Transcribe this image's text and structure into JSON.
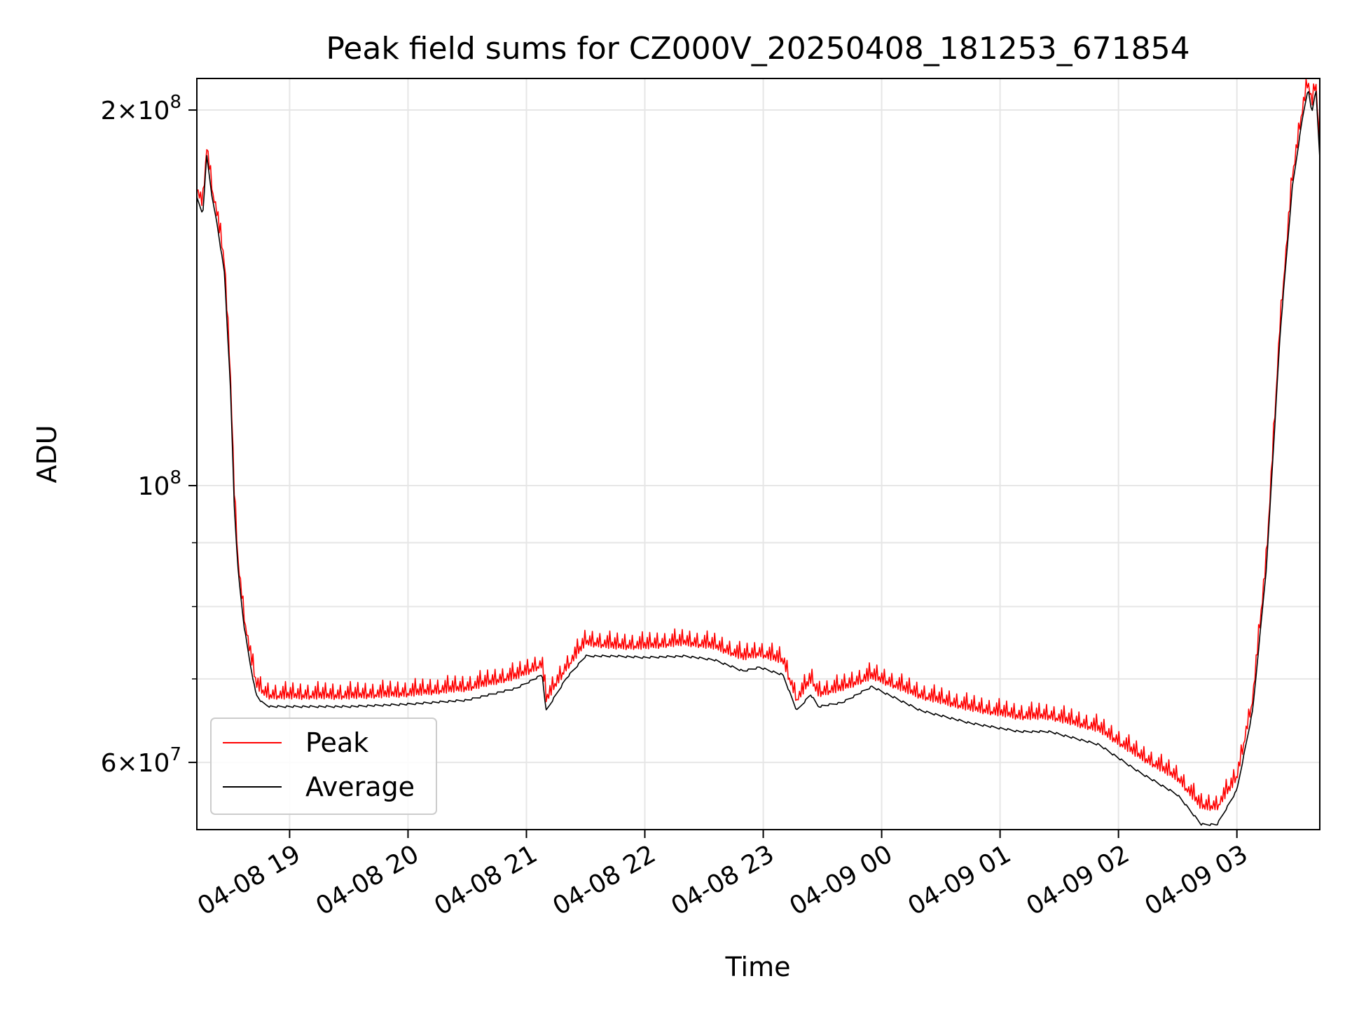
{
  "chart_data": {
    "type": "line",
    "title": "Peak field sums for CZ000V_20250408_181253_671854",
    "xlabel": "Time",
    "ylabel": "ADU",
    "yscale": "log",
    "xlim": [
      "2025-04-08 18:13",
      "2025-04-09 03:42"
    ],
    "ylim": [
      53000000,
      212000000
    ],
    "grid": true,
    "legend_position": "lower-left",
    "xticks": [
      {
        "t": "2025-04-08 19:00",
        "label": "04-08 19"
      },
      {
        "t": "2025-04-08 20:00",
        "label": "04-08 20"
      },
      {
        "t": "2025-04-08 21:00",
        "label": "04-08 21"
      },
      {
        "t": "2025-04-08 22:00",
        "label": "04-08 22"
      },
      {
        "t": "2025-04-08 23:00",
        "label": "04-08 23"
      },
      {
        "t": "2025-04-09 00:00",
        "label": "04-09 00"
      },
      {
        "t": "2025-04-09 01:00",
        "label": "04-09 01"
      },
      {
        "t": "2025-04-09 02:00",
        "label": "04-09 02"
      },
      {
        "t": "2025-04-09 03:00",
        "label": "04-09 03"
      }
    ],
    "yticks_major": [
      {
        "v": 60000000,
        "mantissa": "6",
        "exp": "7"
      },
      {
        "v": 100000000,
        "mantissa": "",
        "exp": "8"
      },
      {
        "v": 200000000,
        "mantissa": "2",
        "exp": "8"
      }
    ],
    "yticks_minor": [
      70000000,
      80000000,
      90000000
    ],
    "series": [
      {
        "name": "Peak",
        "color": "#ff0000",
        "spiky": true,
        "t": [
          "2025-04-08 18:13",
          "2025-04-08 18:16",
          "2025-04-08 18:18",
          "2025-04-08 18:21",
          "2025-04-08 18:23",
          "2025-04-08 18:27",
          "2025-04-08 18:30",
          "2025-04-08 18:32",
          "2025-04-08 18:34",
          "2025-04-08 18:37",
          "2025-04-08 18:40",
          "2025-04-08 18:43",
          "2025-04-08 18:46",
          "2025-04-08 18:50",
          "2025-04-08 18:54",
          "2025-04-08 19:00",
          "2025-04-08 19:15",
          "2025-04-08 19:30",
          "2025-04-08 20:00",
          "2025-04-08 20:30",
          "2025-04-08 20:55",
          "2025-04-08 21:08",
          "2025-04-08 21:10",
          "2025-04-08 21:20",
          "2025-04-08 21:30",
          "2025-04-08 21:45",
          "2025-04-08 22:00",
          "2025-04-08 22:20",
          "2025-04-08 22:35",
          "2025-04-08 22:50",
          "2025-04-08 22:58",
          "2025-04-08 23:10",
          "2025-04-08 23:17",
          "2025-04-08 23:24",
          "2025-04-08 23:28",
          "2025-04-08 23:40",
          "2025-04-08 23:55",
          "2025-04-09 00:20",
          "2025-04-09 00:45",
          "2025-04-09 01:10",
          "2025-04-09 01:25",
          "2025-04-09 01:50",
          "2025-04-09 02:10",
          "2025-04-09 02:30",
          "2025-04-09 02:42",
          "2025-04-09 02:50",
          "2025-04-09 03:00",
          "2025-04-09 03:08",
          "2025-04-09 03:15",
          "2025-04-09 03:22",
          "2025-04-09 03:28",
          "2025-04-09 03:33",
          "2025-04-09 03:36",
          "2025-04-09 03:38",
          "2025-04-09 03:40",
          "2025-04-09 03:42"
        ],
        "v": [
          172000000,
          167000000,
          186000000,
          171000000,
          165000000,
          150000000,
          122000000,
          98000000,
          86000000,
          78000000,
          73000000,
          69000000,
          68000000,
          67500000,
          67500000,
          67500000,
          67500000,
          67500000,
          67800000,
          68500000,
          70000000,
          71500000,
          67000000,
          71000000,
          74500000,
          74000000,
          74000000,
          74500000,
          74000000,
          72500000,
          73000000,
          72000000,
          67000000,
          69500000,
          67800000,
          68500000,
          70000000,
          67500000,
          66000000,
          65000000,
          65000000,
          63500000,
          60500000,
          58000000,
          55000000,
          55000000,
          58000000,
          67000000,
          87000000,
          135000000,
          175000000,
          198000000,
          210000000,
          201000000,
          210000000,
          185000000
        ]
      },
      {
        "name": "Average",
        "color": "#000000",
        "spiky": false,
        "t": [
          "2025-04-08 18:13",
          "2025-04-08 18:16",
          "2025-04-08 18:18",
          "2025-04-08 18:21",
          "2025-04-08 18:23",
          "2025-04-08 18:27",
          "2025-04-08 18:30",
          "2025-04-08 18:32",
          "2025-04-08 18:34",
          "2025-04-08 18:37",
          "2025-04-08 18:40",
          "2025-04-08 18:43",
          "2025-04-08 18:46",
          "2025-04-08 18:50",
          "2025-04-08 18:54",
          "2025-04-08 19:00",
          "2025-04-08 19:15",
          "2025-04-08 19:30",
          "2025-04-08 20:00",
          "2025-04-08 20:30",
          "2025-04-08 20:55",
          "2025-04-08 21:08",
          "2025-04-08 21:10",
          "2025-04-08 21:20",
          "2025-04-08 21:30",
          "2025-04-08 21:45",
          "2025-04-08 22:00",
          "2025-04-08 22:20",
          "2025-04-08 22:35",
          "2025-04-08 22:50",
          "2025-04-08 22:58",
          "2025-04-08 23:10",
          "2025-04-08 23:17",
          "2025-04-08 23:24",
          "2025-04-08 23:28",
          "2025-04-08 23:40",
          "2025-04-08 23:55",
          "2025-04-09 00:20",
          "2025-04-09 00:45",
          "2025-04-09 01:10",
          "2025-04-09 01:25",
          "2025-04-09 01:50",
          "2025-04-09 02:10",
          "2025-04-09 02:30",
          "2025-04-09 02:42",
          "2025-04-09 02:50",
          "2025-04-09 03:00",
          "2025-04-09 03:08",
          "2025-04-09 03:15",
          "2025-04-09 03:22",
          "2025-04-09 03:28",
          "2025-04-09 03:33",
          "2025-04-09 03:36",
          "2025-04-09 03:38",
          "2025-04-09 03:40",
          "2025-04-09 03:42"
        ],
        "v": [
          170000000,
          165000000,
          184000000,
          169000000,
          163000000,
          148000000,
          120000000,
          96000000,
          85000000,
          77000000,
          72000000,
          68000000,
          67000000,
          66500000,
          66500000,
          66500000,
          66500000,
          66500000,
          66800000,
          67300000,
          68800000,
          70500000,
          66000000,
          70000000,
          73000000,
          73000000,
          72800000,
          73000000,
          72500000,
          71000000,
          71500000,
          70500000,
          66000000,
          68000000,
          66500000,
          67000000,
          69000000,
          66000000,
          64500000,
          63500000,
          63500000,
          62000000,
          59000000,
          56500000,
          53500000,
          53500000,
          57000000,
          66000000,
          86000000,
          133000000,
          173000000,
          196000000,
          208000000,
          199000000,
          208000000,
          183000000
        ]
      }
    ]
  }
}
